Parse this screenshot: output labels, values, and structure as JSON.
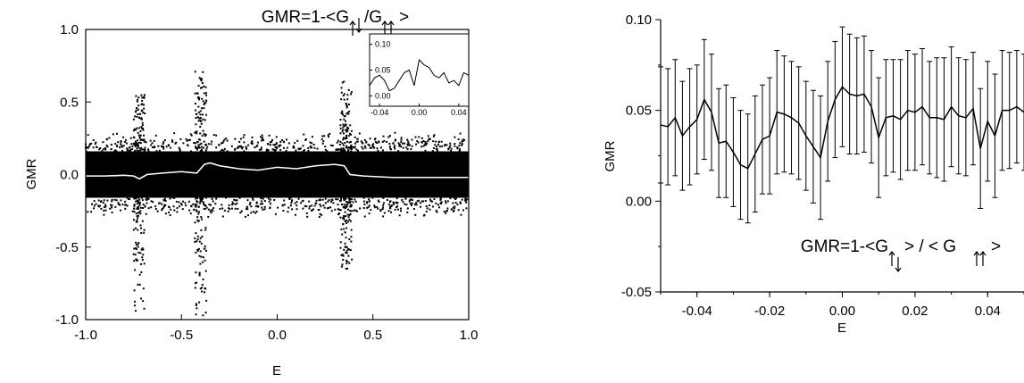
{
  "chart_data": [
    {
      "type": "scatter",
      "xlabel": "E",
      "ylabel": "GMR",
      "xlim": [
        -1.0,
        1.0
      ],
      "ylim": [
        -1.0,
        1.0
      ],
      "x_ticks": [
        "-1.0",
        "-0.5",
        "0.0",
        "0.5",
        "1.0"
      ],
      "y_ticks": [
        "-1.0",
        "-0.5",
        "0.0",
        "0.5",
        "1.0"
      ],
      "formula": {
        "prefix": "GMR=1-<G",
        "middle": "/G",
        "suffix": ">"
      },
      "scatter_band": {
        "main_half_width": 0.16,
        "spikes": [
          {
            "x": -0.72,
            "max": 0.55,
            "min": -0.95
          },
          {
            "x": -0.4,
            "max": 0.72,
            "min": -1.0
          },
          {
            "x": 0.36,
            "max": 0.65,
            "min": -0.68
          }
        ]
      },
      "average_curve": {
        "x": [
          -1.0,
          -0.9,
          -0.8,
          -0.75,
          -0.72,
          -0.68,
          -0.6,
          -0.5,
          -0.42,
          -0.38,
          -0.35,
          -0.3,
          -0.2,
          -0.1,
          0.0,
          0.1,
          0.2,
          0.3,
          0.35,
          0.38,
          0.45,
          0.6,
          0.8,
          1.0
        ],
        "y": [
          -0.01,
          -0.01,
          -0.005,
          -0.01,
          -0.03,
          0.0,
          0.01,
          0.02,
          0.01,
          0.07,
          0.08,
          0.06,
          0.04,
          0.03,
          0.05,
          0.04,
          0.06,
          0.07,
          0.06,
          0.0,
          -0.01,
          -0.02,
          -0.02,
          -0.02
        ]
      },
      "inset": {
        "type": "line",
        "xlim": [
          -0.05,
          0.05
        ],
        "ylim": [
          -0.02,
          0.12
        ],
        "x_ticks": [
          "-0.04",
          "0.00",
          "0.04"
        ],
        "y_ticks": [
          "0.00",
          "0.05",
          "0.10"
        ],
        "x": [
          -0.05,
          -0.045,
          -0.04,
          -0.035,
          -0.03,
          -0.025,
          -0.02,
          -0.015,
          -0.01,
          -0.005,
          0.0,
          0.005,
          0.01,
          0.015,
          0.02,
          0.025,
          0.03,
          0.035,
          0.04,
          0.045,
          0.05
        ],
        "y": [
          0.02,
          0.035,
          0.04,
          0.03,
          0.01,
          0.015,
          0.03,
          0.045,
          0.05,
          0.02,
          0.07,
          0.06,
          0.055,
          0.04,
          0.035,
          0.045,
          0.025,
          0.03,
          0.02,
          0.045,
          0.04
        ]
      }
    },
    {
      "type": "line",
      "xlabel": "E",
      "ylabel": "GMR",
      "xlim": [
        -0.05,
        0.05
      ],
      "ylim": [
        -0.05,
        0.1
      ],
      "x_ticks": [
        "-0.04",
        "-0.02",
        "0.00",
        "0.02",
        "0.04"
      ],
      "y_ticks": [
        "-0.05",
        "0.00",
        "0.05",
        "0.10"
      ],
      "formula": {
        "prefix": "GMR=1-<G",
        "middle": "> / < G",
        "suffix": ">"
      },
      "series": [
        {
          "x": [
            -0.05,
            -0.048,
            -0.046,
            -0.044,
            -0.042,
            -0.04,
            -0.038,
            -0.036,
            -0.034,
            -0.032,
            -0.03,
            -0.028,
            -0.026,
            -0.024,
            -0.022,
            -0.02,
            -0.018,
            -0.016,
            -0.014,
            -0.012,
            -0.01,
            -0.008,
            -0.006,
            -0.004,
            -0.002,
            0.0,
            0.002,
            0.004,
            0.006,
            0.008,
            0.01,
            0.012,
            0.014,
            0.016,
            0.018,
            0.02,
            0.022,
            0.024,
            0.026,
            0.028,
            0.03,
            0.032,
            0.034,
            0.036,
            0.038,
            0.04,
            0.042,
            0.044,
            0.046,
            0.048,
            0.05
          ],
          "y": [
            0.042,
            0.041,
            0.046,
            0.036,
            0.041,
            0.045,
            0.056,
            0.049,
            0.032,
            0.033,
            0.027,
            0.02,
            0.018,
            0.026,
            0.034,
            0.036,
            0.049,
            0.048,
            0.046,
            0.043,
            0.036,
            0.03,
            0.024,
            0.044,
            0.056,
            0.063,
            0.059,
            0.058,
            0.059,
            0.052,
            0.035,
            0.046,
            0.047,
            0.045,
            0.05,
            0.049,
            0.052,
            0.046,
            0.046,
            0.045,
            0.052,
            0.047,
            0.046,
            0.051,
            0.029,
            0.044,
            0.036,
            0.05,
            0.05,
            0.052,
            0.049
          ],
          "err": [
            0.032,
            0.032,
            0.032,
            0.03,
            0.032,
            0.03,
            0.033,
            0.032,
            0.03,
            0.031,
            0.03,
            0.03,
            0.03,
            0.032,
            0.03,
            0.032,
            0.034,
            0.032,
            0.031,
            0.031,
            0.03,
            0.031,
            0.034,
            0.033,
            0.032,
            0.033,
            0.033,
            0.032,
            0.032,
            0.031,
            0.033,
            0.032,
            0.031,
            0.033,
            0.033,
            0.032,
            0.032,
            0.031,
            0.033,
            0.034,
            0.033,
            0.032,
            0.032,
            0.031,
            0.033,
            0.033,
            0.034,
            0.033,
            0.032,
            0.031,
            0.032
          ]
        }
      ]
    }
  ]
}
